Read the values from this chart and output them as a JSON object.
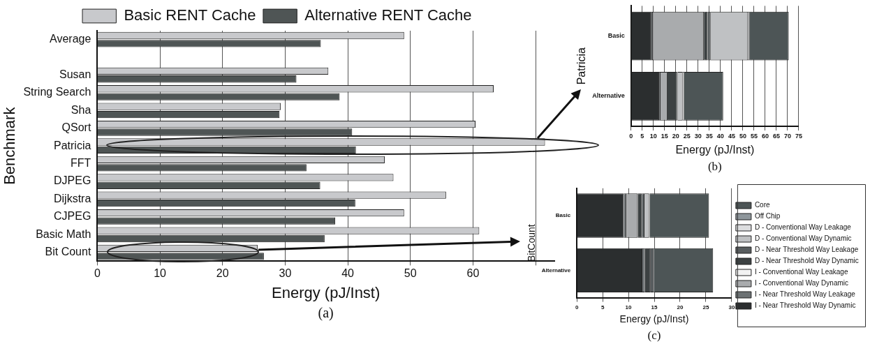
{
  "chart_data": [
    {
      "type": "bar",
      "orientation": "horizontal",
      "xlabel": "Energy (pJ/Inst)",
      "ylabel": "Benchmark",
      "annotations": [
        "(a)"
      ],
      "categories": [
        "Average",
        null,
        "Susan",
        "String Search",
        "Sha",
        "QSort",
        "Patricia",
        "FFT",
        "DJPEG",
        "Dijkstra",
        "CJPEG",
        "Basic Math",
        "Bit Count"
      ],
      "series": [
        {
          "name": "Basic RENT Cache",
          "color": "#c8c9cc",
          "values": [
            49.0,
            null,
            36.9,
            63.3,
            29.3,
            60.4,
            71.5,
            45.9,
            47.3,
            55.7,
            49.0,
            61.0,
            25.6
          ]
        },
        {
          "name": "Alternative RENT Cache",
          "color": "#4f5555",
          "values": [
            35.7,
            null,
            31.8,
            38.7,
            29.1,
            40.7,
            41.3,
            33.4,
            35.6,
            41.2,
            38.0,
            36.3,
            26.6
          ]
        }
      ],
      "xlim": [
        0,
        73
      ],
      "xticks": [
        0,
        10,
        20,
        30,
        40,
        50,
        60,
        {
          "value": 70,
          "label": null
        }
      ],
      "grid": "x",
      "legend": "top"
    },
    {
      "type": "bar",
      "orientation": "horizontal",
      "stacked": true,
      "xlabel": "Energy (pJ/Inst)",
      "ylabel": "Patricia",
      "annotations": [
        "(b)"
      ],
      "categories": [
        "Basic",
        "Alternative"
      ],
      "series": [
        {
          "color": "#2b2e2f",
          "values": [
            9.1,
            12.6
          ]
        },
        {
          "color": "#6c7173",
          "values": [
            0.7,
            0.6
          ]
        },
        {
          "color": "#a9abad",
          "values": [
            22.8,
            3.1
          ]
        },
        {
          "color": "#f2f2f2",
          "values": [
            0,
            0
          ]
        },
        {
          "color": "#3c4142",
          "values": [
            1.7,
            4.3
          ]
        },
        {
          "color": "#585d5f",
          "values": [
            1.3,
            0.3
          ]
        },
        {
          "color": "#bfc1c3",
          "values": [
            16.7,
            2.2
          ]
        },
        {
          "color": "#dcdddf",
          "values": [
            0.6,
            0.6
          ]
        },
        {
          "color": "#8e969b",
          "values": [
            0,
            0
          ]
        },
        {
          "color": "#4d5556",
          "values": [
            17.6,
            17.5
          ]
        }
      ],
      "xlim": [
        0,
        75
      ],
      "xticks": [
        0,
        5,
        10,
        15,
        20,
        25,
        30,
        35,
        40,
        45,
        50,
        55,
        60,
        65,
        70,
        75
      ],
      "grid": "x"
    },
    {
      "type": "bar",
      "orientation": "horizontal",
      "stacked": true,
      "xlabel": "Energy (pJ/Inst)",
      "ylabel": "BitCount",
      "annotations": [
        "(c)"
      ],
      "categories": [
        "Basic",
        "Alternative"
      ],
      "series": [
        {
          "name": "I - Near Threshold Way Dynamic",
          "color": "#2b2e2f",
          "values": [
            9.1,
            12.7
          ]
        },
        {
          "name": "I - Near Threshold Way Leakage",
          "color": "#6c7173",
          "values": [
            0.5,
            0.5
          ]
        },
        {
          "name": "I - Conventional Way Dynamic",
          "color": "#a9abad",
          "values": [
            2.2,
            0
          ]
        },
        {
          "name": "I - Conventional Way Leakage",
          "color": "#f2f2f2",
          "values": [
            0,
            0
          ]
        },
        {
          "name": "D - Near Threshold Way Dynamic",
          "color": "#3c4142",
          "values": [
            0.8,
            1.1
          ]
        },
        {
          "name": "D - Near Threshold Way Leakage",
          "color": "#585d5f",
          "values": [
            0.5,
            0.6
          ]
        },
        {
          "name": "D - Conventional Way Dynamic",
          "color": "#bfc1c3",
          "values": [
            0.9,
            0
          ]
        },
        {
          "name": "D - Conventional Way Leakage",
          "color": "#dcdddf",
          "values": [
            0.1,
            0
          ]
        },
        {
          "name": "Off Chip",
          "color": "#8e969b",
          "values": [
            0,
            0
          ]
        },
        {
          "name": "Core",
          "color": "#4d5556",
          "values": [
            11.5,
            11.5
          ]
        }
      ],
      "xlim": [
        0,
        30
      ],
      "xticks": [
        0,
        5,
        10,
        15,
        20,
        25,
        30
      ],
      "grid": "x",
      "legend": "right"
    }
  ]
}
